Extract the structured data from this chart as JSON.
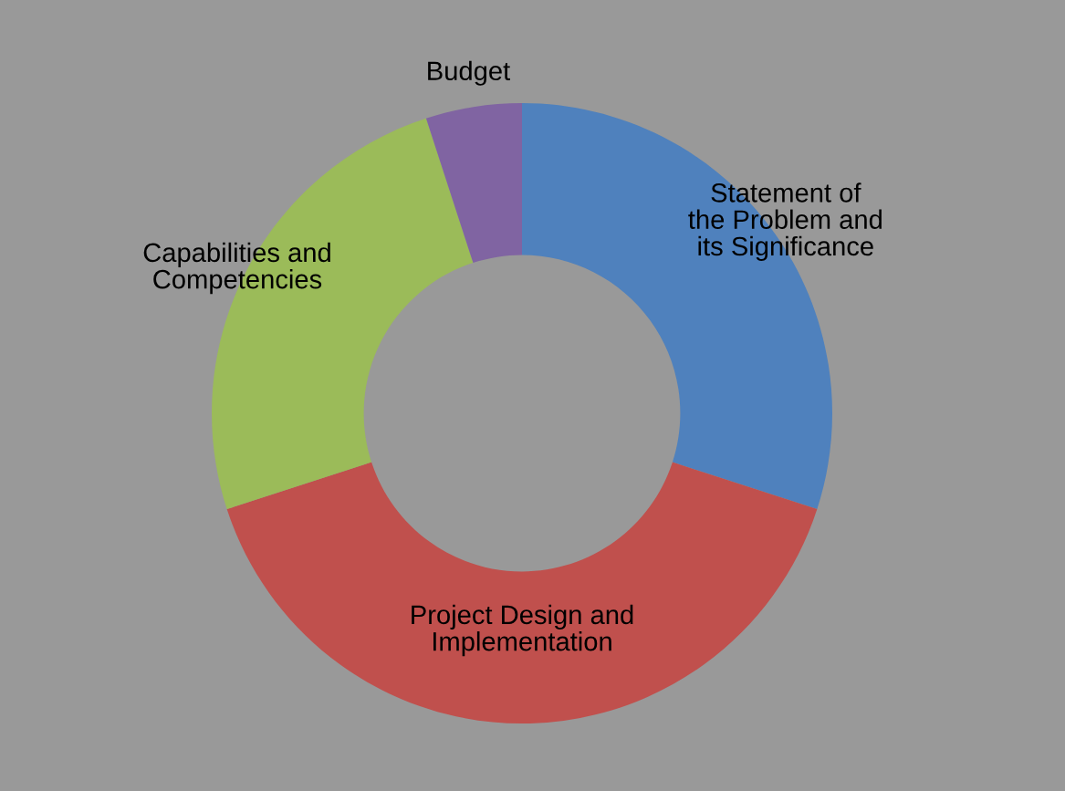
{
  "chart_data": {
    "type": "donut",
    "categories": [
      "Statement of the Problem and its Significance",
      "Project Design and Implementation",
      "Capabilities and Competencies",
      "Budget"
    ],
    "values": [
      30,
      40,
      25,
      5
    ],
    "colors": [
      "#4f81bd",
      "#c0504d",
      "#9bbb59",
      "#8064a2"
    ]
  }
}
